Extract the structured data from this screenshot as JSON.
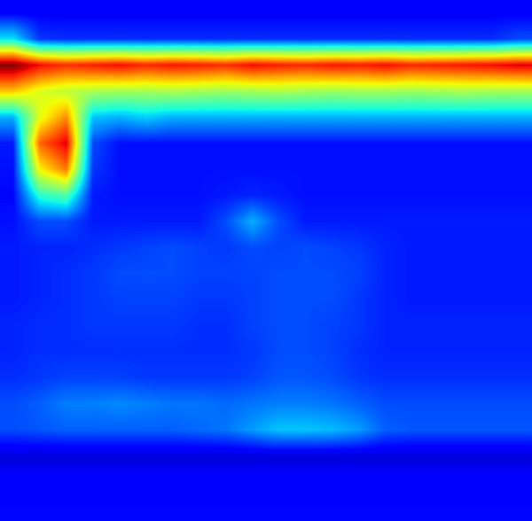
{
  "chart_data": {
    "type": "heatmap",
    "tick_labels": false,
    "color_range": [
      0,
      1
    ],
    "cells": [
      [
        0.12,
        0.12,
        0.12,
        0.12,
        0.12,
        0.12,
        0.12,
        0.12,
        0.12,
        0.12,
        0.12,
        0.12,
        0.12,
        0.12,
        0.12,
        0.12,
        0.12,
        0.12,
        0.12,
        0.12
      ],
      [
        0.35,
        0.18,
        0.17,
        0.17,
        0.17,
        0.17,
        0.17,
        0.17,
        0.17,
        0.17,
        0.17,
        0.17,
        0.17,
        0.17,
        0.17,
        0.17,
        0.17,
        0.17,
        0.17,
        0.2
      ],
      [
        1.0,
        0.9,
        0.86,
        0.88,
        0.9,
        0.87,
        0.89,
        0.88,
        0.86,
        0.9,
        0.88,
        0.87,
        0.89,
        0.88,
        0.9,
        0.87,
        0.88,
        0.89,
        0.9,
        0.92
      ],
      [
        0.7,
        0.62,
        0.58,
        0.56,
        0.55,
        0.55,
        0.56,
        0.55,
        0.54,
        0.55,
        0.56,
        0.55,
        0.54,
        0.55,
        0.55,
        0.54,
        0.55,
        0.56,
        0.55,
        0.55
      ],
      [
        0.3,
        0.62,
        0.76,
        0.32,
        0.3,
        0.33,
        0.3,
        0.3,
        0.3,
        0.3,
        0.3,
        0.3,
        0.3,
        0.3,
        0.3,
        0.3,
        0.3,
        0.3,
        0.3,
        0.3
      ],
      [
        0.15,
        0.8,
        0.92,
        0.2,
        0.14,
        0.14,
        0.14,
        0.14,
        0.14,
        0.14,
        0.14,
        0.14,
        0.14,
        0.14,
        0.14,
        0.14,
        0.14,
        0.14,
        0.14,
        0.14
      ],
      [
        0.14,
        0.65,
        0.78,
        0.18,
        0.14,
        0.14,
        0.14,
        0.14,
        0.14,
        0.14,
        0.14,
        0.14,
        0.14,
        0.14,
        0.14,
        0.14,
        0.14,
        0.14,
        0.14,
        0.14
      ],
      [
        0.13,
        0.4,
        0.45,
        0.15,
        0.14,
        0.14,
        0.14,
        0.14,
        0.15,
        0.16,
        0.15,
        0.14,
        0.14,
        0.14,
        0.14,
        0.14,
        0.14,
        0.14,
        0.14,
        0.14
      ],
      [
        0.14,
        0.2,
        0.2,
        0.15,
        0.15,
        0.15,
        0.15,
        0.15,
        0.2,
        0.3,
        0.2,
        0.15,
        0.15,
        0.15,
        0.15,
        0.15,
        0.15,
        0.15,
        0.15,
        0.15
      ],
      [
        0.15,
        0.16,
        0.16,
        0.17,
        0.18,
        0.19,
        0.2,
        0.19,
        0.18,
        0.2,
        0.19,
        0.2,
        0.19,
        0.18,
        0.16,
        0.15,
        0.15,
        0.15,
        0.15,
        0.15
      ],
      [
        0.15,
        0.16,
        0.17,
        0.18,
        0.2,
        0.2,
        0.2,
        0.19,
        0.19,
        0.19,
        0.2,
        0.2,
        0.2,
        0.19,
        0.16,
        0.15,
        0.15,
        0.15,
        0.15,
        0.15
      ],
      [
        0.15,
        0.16,
        0.17,
        0.18,
        0.19,
        0.19,
        0.19,
        0.18,
        0.18,
        0.19,
        0.2,
        0.2,
        0.2,
        0.18,
        0.16,
        0.15,
        0.15,
        0.15,
        0.15,
        0.15
      ],
      [
        0.16,
        0.17,
        0.17,
        0.18,
        0.18,
        0.18,
        0.18,
        0.17,
        0.17,
        0.19,
        0.2,
        0.2,
        0.19,
        0.18,
        0.16,
        0.16,
        0.16,
        0.16,
        0.16,
        0.16
      ],
      [
        0.16,
        0.17,
        0.17,
        0.17,
        0.17,
        0.17,
        0.17,
        0.17,
        0.17,
        0.18,
        0.2,
        0.2,
        0.19,
        0.17,
        0.16,
        0.16,
        0.16,
        0.16,
        0.16,
        0.16
      ],
      [
        0.17,
        0.18,
        0.19,
        0.19,
        0.19,
        0.18,
        0.18,
        0.18,
        0.18,
        0.19,
        0.21,
        0.21,
        0.2,
        0.18,
        0.17,
        0.17,
        0.17,
        0.17,
        0.17,
        0.17
      ],
      [
        0.2,
        0.22,
        0.25,
        0.25,
        0.26,
        0.25,
        0.24,
        0.24,
        0.23,
        0.24,
        0.25,
        0.25,
        0.24,
        0.22,
        0.2,
        0.2,
        0.2,
        0.2,
        0.2,
        0.2
      ],
      [
        0.2,
        0.21,
        0.22,
        0.22,
        0.22,
        0.22,
        0.22,
        0.23,
        0.24,
        0.28,
        0.32,
        0.32,
        0.31,
        0.28,
        0.22,
        0.21,
        0.21,
        0.21,
        0.21,
        0.21
      ],
      [
        0.08,
        0.08,
        0.08,
        0.08,
        0.08,
        0.08,
        0.08,
        0.08,
        0.08,
        0.08,
        0.08,
        0.08,
        0.08,
        0.08,
        0.08,
        0.08,
        0.08,
        0.08,
        0.08,
        0.08
      ],
      [
        0.12,
        0.12,
        0.12,
        0.12,
        0.12,
        0.12,
        0.12,
        0.12,
        0.12,
        0.12,
        0.12,
        0.12,
        0.12,
        0.12,
        0.12,
        0.12,
        0.12,
        0.12,
        0.12,
        0.12
      ],
      [
        0.13,
        0.13,
        0.13,
        0.13,
        0.13,
        0.13,
        0.13,
        0.13,
        0.13,
        0.13,
        0.13,
        0.13,
        0.13,
        0.13,
        0.13,
        0.13,
        0.13,
        0.13,
        0.13,
        0.13
      ]
    ]
  }
}
